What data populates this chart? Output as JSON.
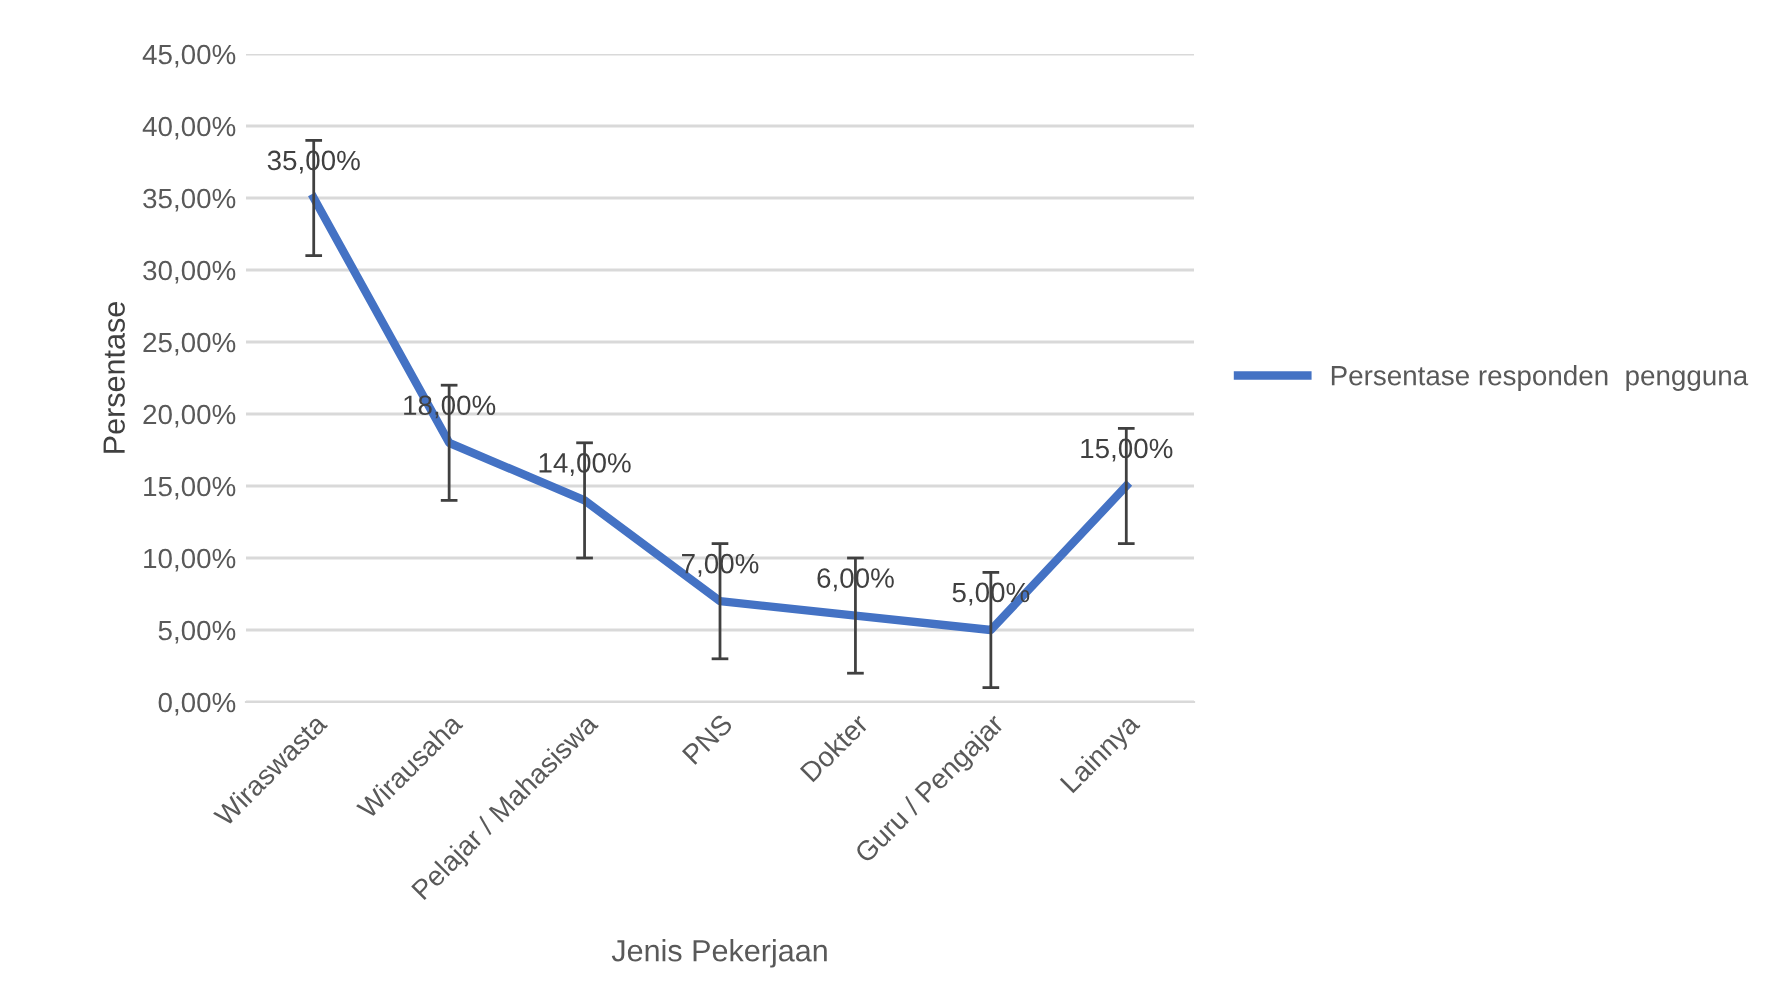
{
  "chart_data": {
    "type": "line",
    "xlabel": "Jenis Pekerjaan",
    "ylabel": "Persentase",
    "categories": [
      "Wiraswasta",
      "Wirausaha",
      "Pelajar / Mahasiswa",
      "PNS",
      "Dokter",
      "Guru / Pengajar",
      "Lainnya"
    ],
    "series": [
      {
        "name": "Persentase responden  pengguna",
        "color": "#4472c4",
        "values": [
          35,
          18,
          14,
          7,
          6,
          5,
          15
        ],
        "errors": [
          4,
          4,
          4,
          4,
          4,
          4,
          4
        ],
        "value_labels": [
          "35,00%",
          "18,00%",
          "14,00%",
          "7,00%",
          "6,00%",
          "5,00%",
          "15,00%"
        ]
      }
    ],
    "ylim": [
      0,
      45
    ],
    "yticks": [
      {
        "value": 0,
        "label": "0,00%"
      },
      {
        "value": 5,
        "label": "5,00%"
      },
      {
        "value": 10,
        "label": "10,00%"
      },
      {
        "value": 15,
        "label": "15,00%"
      },
      {
        "value": 20,
        "label": "20,00%"
      },
      {
        "value": 25,
        "label": "25,00%"
      },
      {
        "value": 30,
        "label": "30,00%"
      },
      {
        "value": 35,
        "label": "35,00%"
      },
      {
        "value": 40,
        "label": "40,00%"
      },
      {
        "value": 45,
        "label": "45,00%"
      }
    ],
    "grid": "y",
    "legend": "right",
    "marker": "none",
    "line_style": "solid"
  }
}
